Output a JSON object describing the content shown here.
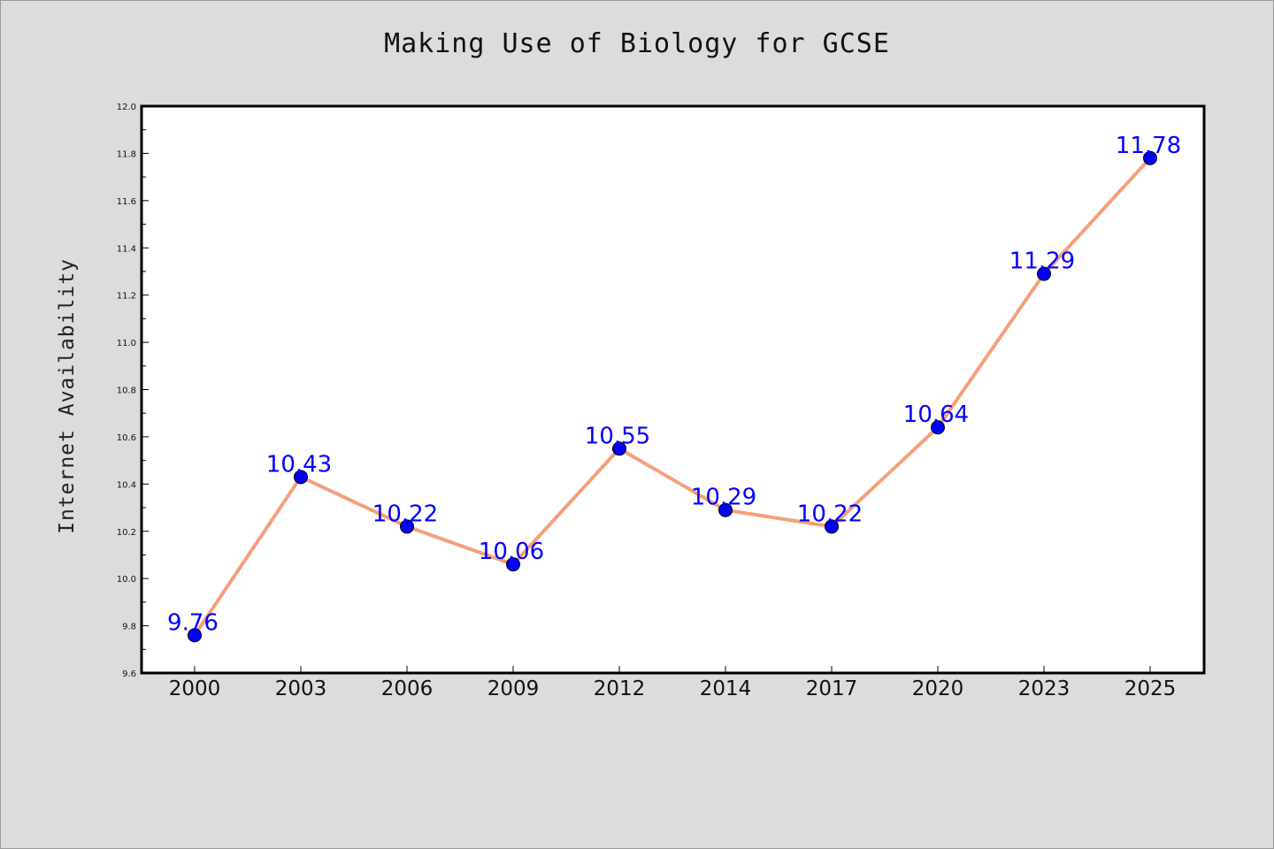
{
  "chart_data": {
    "type": "line",
    "title": "Making Use of Biology for GCSE",
    "xlabel": "",
    "ylabel": "Internet Availability",
    "categories": [
      "2000",
      "2003",
      "2006",
      "2009",
      "2012",
      "2014",
      "2017",
      "2020",
      "2023",
      "2025"
    ],
    "series": [
      {
        "values": [
          9.76,
          10.43,
          10.22,
          10.06,
          10.55,
          10.29,
          10.22,
          10.64,
          11.29,
          11.78
        ],
        "labels": [
          "9.76",
          "10.43",
          "10.22",
          "10.06",
          "10.55",
          "10.29",
          "10.22",
          "10.64",
          "11.29",
          "11.78"
        ]
      }
    ],
    "ylim": [
      9.6,
      12.0
    ],
    "yticks": [
      "9.6",
      "9.8",
      "10.0",
      "10.2",
      "10.4",
      "10.6",
      "10.8",
      "11.0",
      "11.2",
      "11.4",
      "11.6",
      "11.8",
      "12.0"
    ],
    "grid": false,
    "colors": {
      "line": "#f4a07a",
      "marker": "#0000ff",
      "label": "#0000ff",
      "plot_bg": "#ffffff",
      "page_bg": "#dcdcdc"
    }
  }
}
